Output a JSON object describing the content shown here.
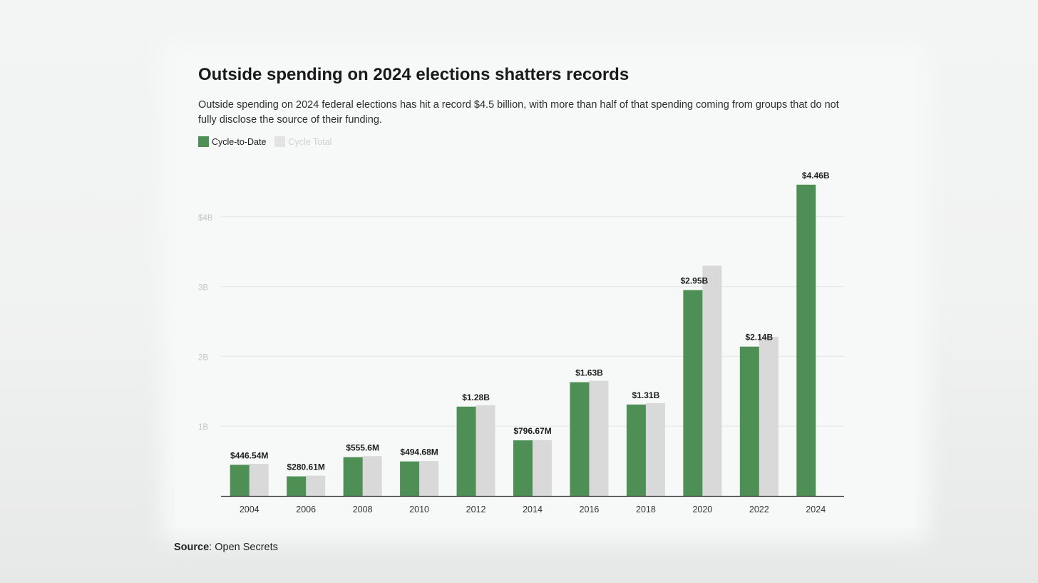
{
  "header": {
    "title": "Outside spending on 2024 elections shatters records",
    "subtitle": "Outside spending on 2024 federal elections has hit a record $4.5 billion, with more than half of that spending coming from groups that do not fully disclose the source of their funding."
  },
  "legend": {
    "items": [
      {
        "label": "Cycle-to-Date",
        "color": "#4e8f55"
      },
      {
        "label": "Cycle Total",
        "color": "#d9d9d9"
      }
    ]
  },
  "source": {
    "label": "Source",
    "text": ": Open Secrets"
  },
  "chart_data": {
    "type": "bar",
    "categories": [
      "2004",
      "2006",
      "2008",
      "2010",
      "2012",
      "2014",
      "2016",
      "2018",
      "2020",
      "2022",
      "2024"
    ],
    "series": [
      {
        "name": "Cycle-to-Date",
        "color": "#4e8f55",
        "values": [
          0.44654,
          0.28061,
          0.5556,
          0.49468,
          1.28,
          0.79667,
          1.63,
          1.31,
          2.95,
          2.14,
          4.46
        ]
      },
      {
        "name": "Cycle Total",
        "color": "#d9d9d9",
        "values": [
          0.46,
          0.29,
          0.57,
          0.5,
          1.3,
          0.8,
          1.65,
          1.33,
          3.3,
          2.28,
          null
        ]
      }
    ],
    "data_labels": [
      "$446.54M",
      "$280.61M",
      "$555.6M",
      "$494.68M",
      "$1.28B",
      "$796.67M",
      "$1.63B",
      "$1.31B",
      "$2.95B",
      "$2.14B",
      "$4.46B"
    ],
    "y_ticks": [
      {
        "value": 1,
        "label": "1B"
      },
      {
        "value": 2,
        "label": "2B"
      },
      {
        "value": 3,
        "label": "3B"
      },
      {
        "value": 4,
        "label": "$4B"
      }
    ],
    "ylim": [
      0,
      4.6
    ],
    "xlabel": "",
    "ylabel": "",
    "grid": true,
    "legend_position": "top-left"
  }
}
